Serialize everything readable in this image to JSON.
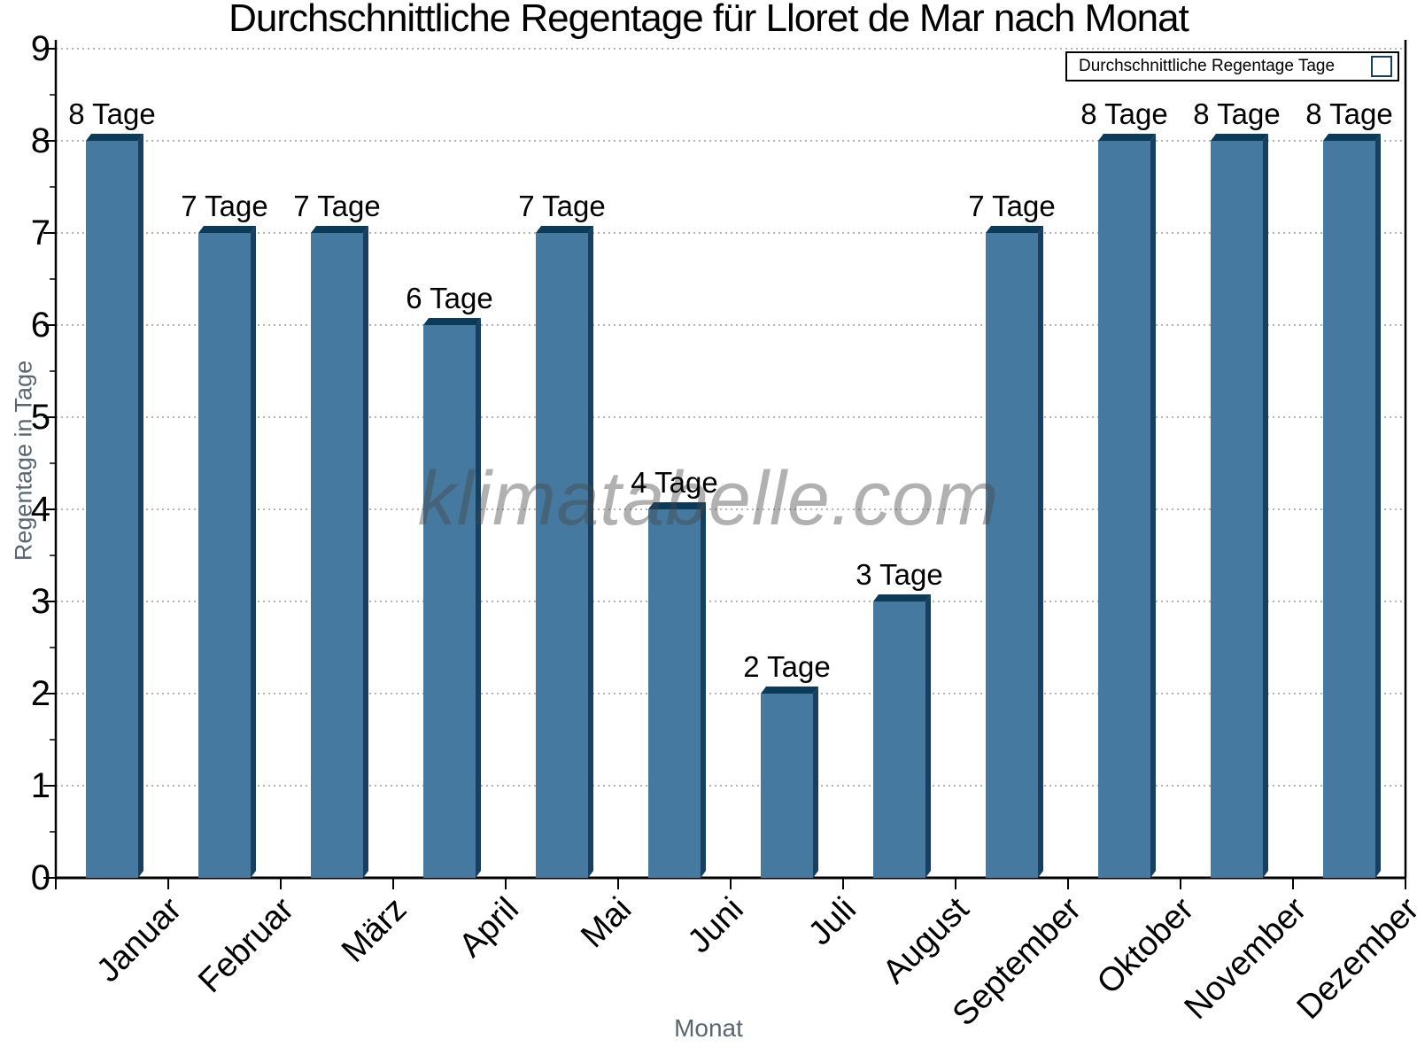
{
  "chart_data": {
    "type": "bar",
    "title": "Durchschnittliche Regentage für Lloret de Mar nach Monat",
    "xlabel": "Monat",
    "ylabel": "Regentage in Tage",
    "categories": [
      "Januar",
      "Februar",
      "März",
      "April",
      "Mai",
      "Juni",
      "Juli",
      "August",
      "September",
      "Oktober",
      "November",
      "Dezember"
    ],
    "values": [
      8,
      7,
      7,
      6,
      7,
      4,
      2,
      3,
      7,
      8,
      8,
      8
    ],
    "bar_labels": [
      "8 Tage",
      "7 Tage",
      "7 Tage",
      "6 Tage",
      "7 Tage",
      "4 Tage",
      "2 Tage",
      "3 Tage",
      "7 Tage",
      "8 Tage",
      "8 Tage",
      "8 Tage"
    ],
    "ylim": [
      0,
      9
    ],
    "y_ticks": [
      0,
      1,
      2,
      3,
      4,
      5,
      6,
      7,
      8,
      9
    ],
    "y_minor_tick_step": 0.5,
    "grid": "horizontal dotted",
    "legend": {
      "label": "Durchschnittliche Regentage Tage",
      "position": "top-right"
    },
    "watermark": "klimatabelle.com",
    "colors": {
      "bar_front": "#46799f",
      "bar_side": "#174060",
      "bar_top": "#0d3a57",
      "grid": "#b4b4b4",
      "axis": "#000000",
      "axis_title": "#5a6672"
    }
  }
}
